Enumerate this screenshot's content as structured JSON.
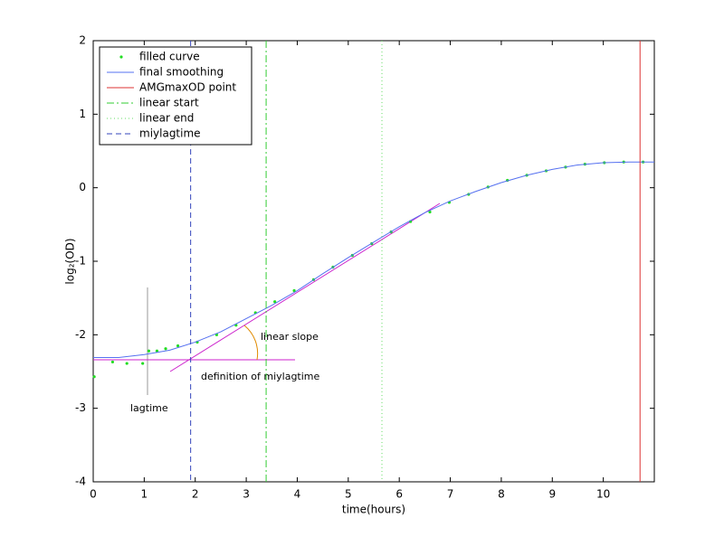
{
  "chart_data": {
    "type": "line",
    "xlabel": "time(hours)",
    "ylabel": "log₂(OD)",
    "xlim": [
      0,
      11
    ],
    "ylim": [
      -4,
      2
    ],
    "xticks": [
      0,
      1,
      2,
      3,
      4,
      5,
      6,
      7,
      8,
      9,
      10
    ],
    "yticks": [
      -4,
      -3,
      -2,
      -1,
      0,
      1,
      2
    ],
    "legend": "upper left",
    "series": [
      {
        "name": "filled curve",
        "color": "#22dd22",
        "style": "dots",
        "x": [
          0.02,
          0.38,
          0.66,
          0.97,
          1.09,
          1.25,
          1.42,
          1.66,
          2.04,
          2.42,
          2.8,
          3.18,
          3.56,
          3.94,
          4.32,
          4.7,
          5.08,
          5.46,
          5.84,
          6.22,
          6.6,
          6.98,
          7.36,
          7.74,
          8.12,
          8.5,
          8.88,
          9.26,
          9.64,
          10.02,
          10.4,
          10.78
        ],
        "values": [
          -2.57,
          -2.37,
          -2.39,
          -2.39,
          -2.22,
          -2.22,
          -2.19,
          -2.15,
          -2.1,
          -2.0,
          -1.87,
          -1.7,
          -1.55,
          -1.4,
          -1.25,
          -1.08,
          -0.92,
          -0.76,
          -0.6,
          -0.46,
          -0.33,
          -0.2,
          -0.09,
          0.01,
          0.1,
          0.17,
          0.23,
          0.28,
          0.32,
          0.34,
          0.35,
          0.35
        ]
      },
      {
        "name": "final smoothing",
        "color": "#5570f0",
        "style": "solid",
        "x": [
          0,
          0.5,
          1,
          1.5,
          2,
          2.5,
          3,
          3.5,
          4,
          4.5,
          5,
          5.5,
          6,
          6.5,
          7,
          7.5,
          8,
          8.5,
          9,
          9.5,
          10,
          10.5,
          11
        ],
        "values": [
          -2.31,
          -2.31,
          -2.27,
          -2.21,
          -2.1,
          -1.96,
          -1.78,
          -1.6,
          -1.4,
          -1.17,
          -0.95,
          -0.74,
          -0.53,
          -0.34,
          -0.18,
          -0.05,
          0.07,
          0.17,
          0.25,
          0.31,
          0.34,
          0.35,
          0.35
        ]
      },
      {
        "name": "AMGmaxOD point",
        "color": "#dd3333",
        "style": "solid",
        "xline": 10.72
      },
      {
        "name": "linear start",
        "color": "#33cc33",
        "style": "dashdot",
        "xline": 3.39
      },
      {
        "name": "linear end",
        "color": "#66dd66",
        "style": "dotted",
        "xline": 5.66
      },
      {
        "name": "miylagtime",
        "color": "#3344bb",
        "style": "dashed",
        "xline": 1.91
      }
    ],
    "annotations": [
      {
        "text": "linear slope",
        "color": "#e08a00"
      },
      {
        "text": "definition of miylagtime",
        "color": "#cc22cc"
      },
      {
        "text": "lagtime",
        "color": "#000000"
      }
    ]
  }
}
